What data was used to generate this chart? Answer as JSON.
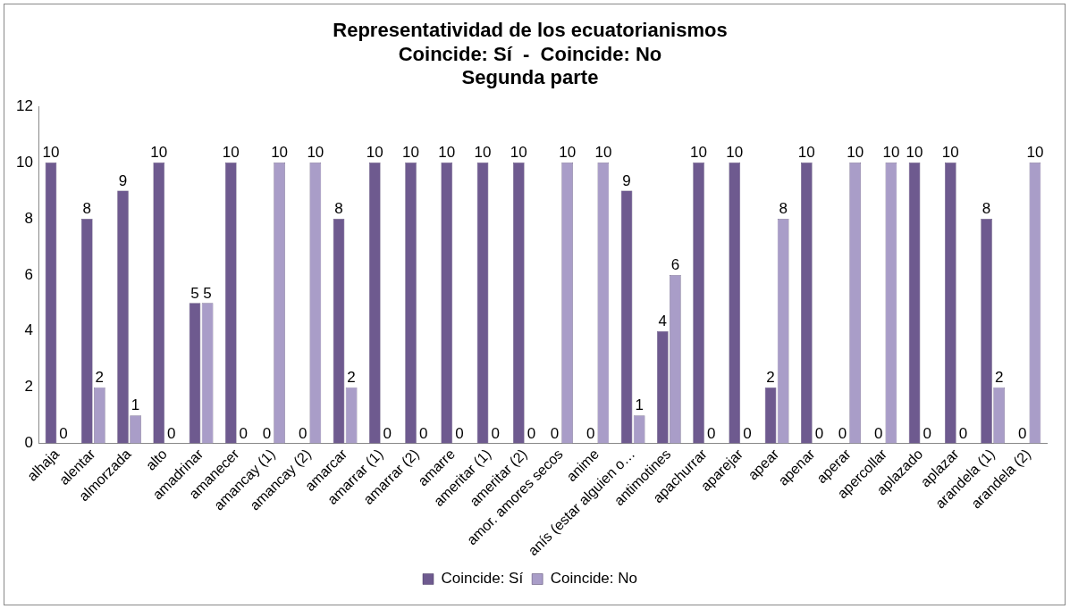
{
  "chart_data": {
    "type": "bar",
    "title": "Representatividad de los ecuatorianismos\nCoincide: Sí  -  Coincide: No\nSegunda parte",
    "categories": [
      "alhaja",
      "alentar",
      "almorzada",
      "alto",
      "amadrinar",
      "amanecer",
      "amancay (1)",
      "amancay (2)",
      "amarcar",
      "amarrar (1)",
      "amarrar (2)",
      "amarre",
      "ameritar (1)",
      "ameritar (2)",
      "amor. amores secos",
      "anime",
      "anís (estar alguien o…",
      "antimotines",
      "apachurrar",
      "aparejar",
      "apear",
      "apenar",
      "aperar",
      "apercollar",
      "aplazado",
      "aplazar",
      "arandela (1)",
      "arandela (2)"
    ],
    "series": [
      {
        "name": "Coincide: Sí",
        "color": "#6e5a8f",
        "values": [
          10,
          8,
          9,
          10,
          5,
          10,
          0,
          0,
          8,
          10,
          10,
          10,
          10,
          10,
          0,
          0,
          9,
          4,
          10,
          10,
          2,
          10,
          0,
          0,
          10,
          10,
          8,
          0
        ]
      },
      {
        "name": "Coincide: No",
        "color": "#a99dc8",
        "values": [
          0,
          2,
          1,
          0,
          5,
          0,
          10,
          10,
          2,
          0,
          0,
          0,
          0,
          0,
          10,
          10,
          1,
          6,
          0,
          0,
          8,
          0,
          10,
          10,
          0,
          0,
          2,
          10
        ]
      }
    ],
    "ylim": [
      0,
      12
    ],
    "yticks": [
      0,
      2,
      4,
      6,
      8,
      10,
      12
    ],
    "grid": false,
    "legend": "bottom",
    "data_labels": true
  }
}
